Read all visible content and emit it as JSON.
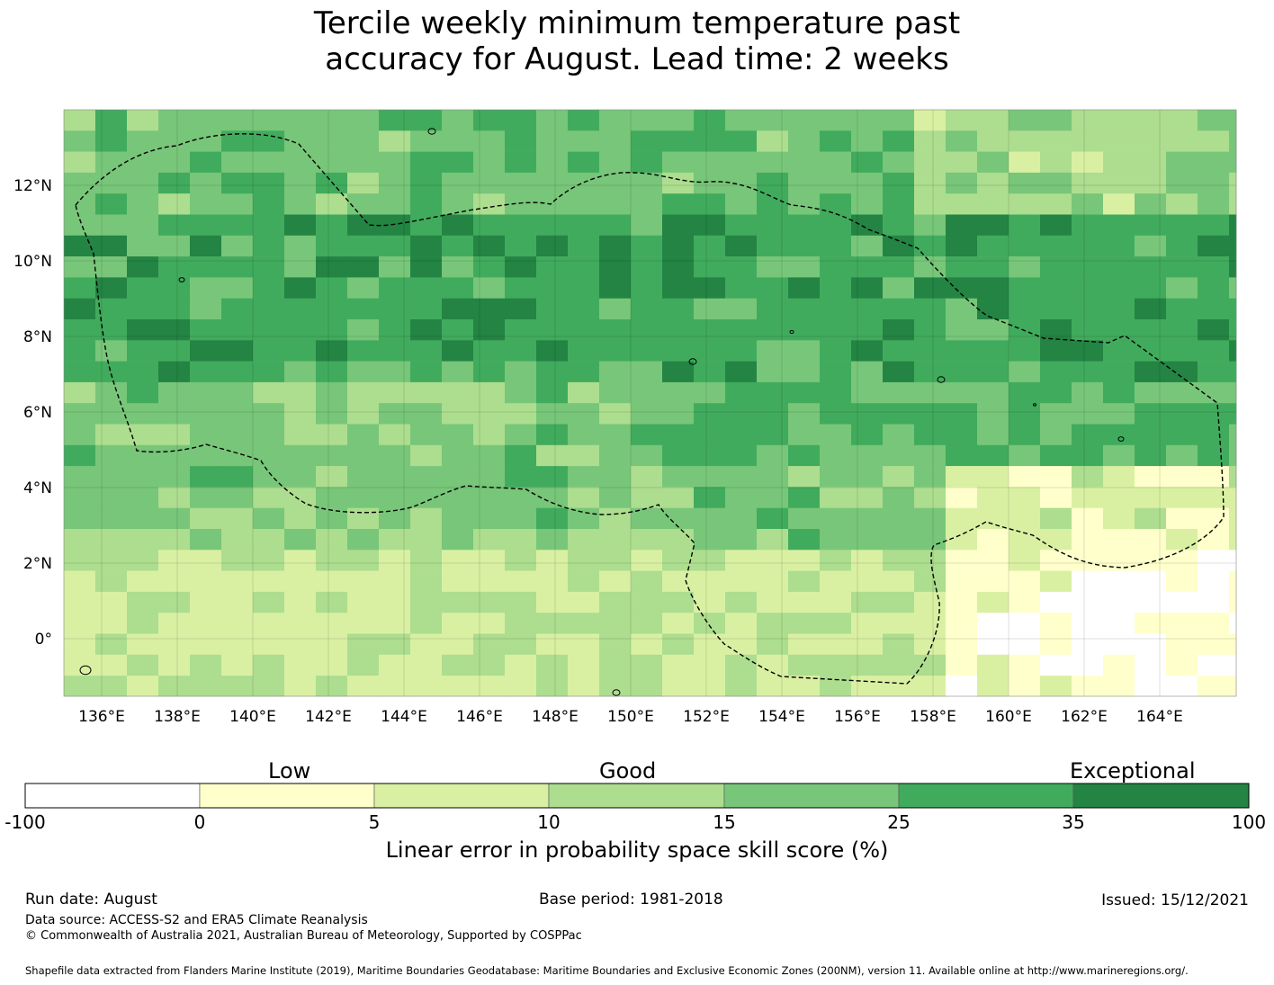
{
  "title_line1": "Tercile weekly minimum temperature past",
  "title_line2": "accuracy for August. Lead time: 2 weeks",
  "map": {
    "lon_labels": [
      "136°E",
      "138°E",
      "140°E",
      "142°E",
      "144°E",
      "146°E",
      "148°E",
      "150°E",
      "152°E",
      "154°E",
      "156°E",
      "158°E",
      "160°E",
      "162°E",
      "164°E"
    ],
    "lat_labels": [
      "12°N",
      "10°N",
      "8°N",
      "6°N",
      "4°N",
      "2°N",
      "0°"
    ],
    "lon_range": [
      135,
      166
    ],
    "lat_range": [
      -1.5,
      14
    ]
  },
  "colorbar": {
    "categories": [
      "Low",
      "Good",
      "Exceptional"
    ],
    "ticks": [
      "-100",
      "0",
      "5",
      "10",
      "15",
      "25",
      "35",
      "100"
    ],
    "colors": [
      "#ffffff",
      "#ffffcc",
      "#d9f0a3",
      "#addd8e",
      "#78c679",
      "#41ab5d",
      "#238443"
    ],
    "label": "Linear error in probability space skill score (%)"
  },
  "footer": {
    "run_date": "Run date: August",
    "base_period": "Base period: 1981-2018",
    "issued": "Issued: 15/12/2021",
    "data_source": "Data source: ACCESS-S2 and ERA5 Climate Reanalysis",
    "copyright": "© Commonwealth of Australia 2021, Australian Bureau of Meteorology, Supported by COSPPac",
    "shapefile": "Shapefile data extracted from Flanders Marine Institute (2019), Maritime Boundaries Geodatabase: Maritime Boundaries and Exclusive Economic Zones (200NM), version 11. Available online at http://www.marineregions.org/."
  }
}
